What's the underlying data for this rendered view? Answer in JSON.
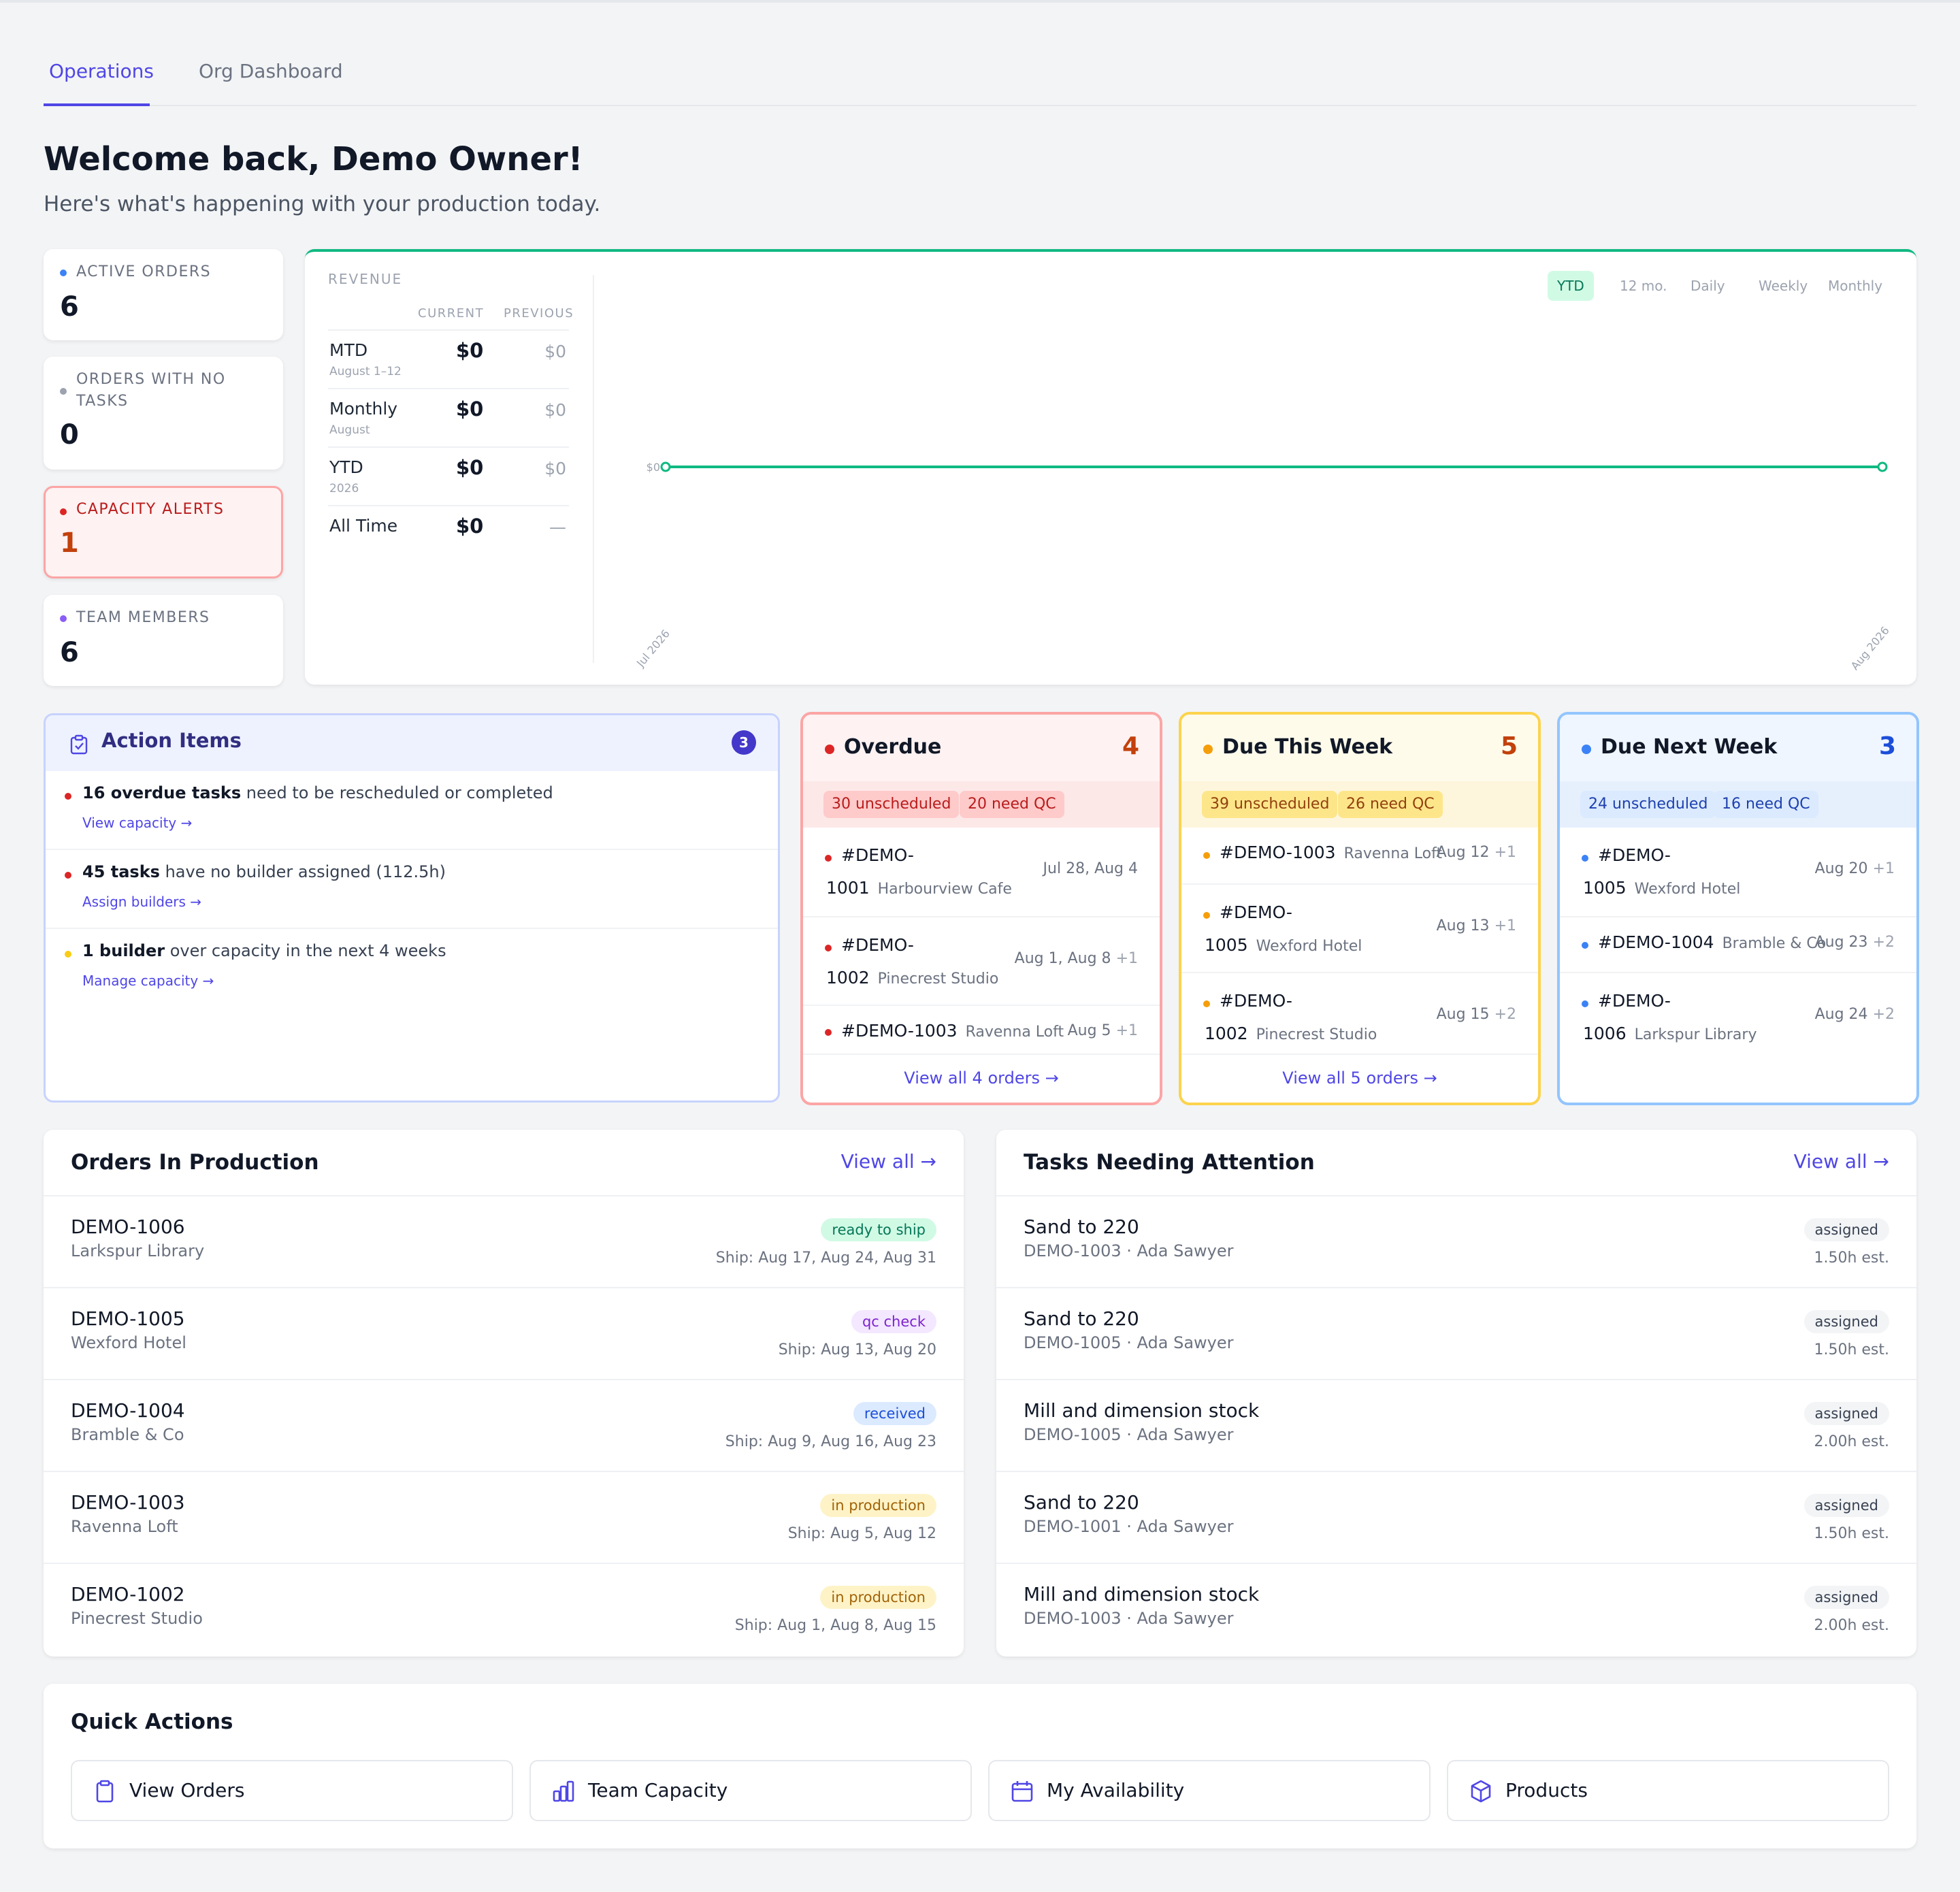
{
  "tabs": [
    {
      "label": "Operations"
    },
    {
      "label": "Org Dashboard"
    }
  ],
  "header": {
    "title": "Welcome back, Demo Owner!",
    "subtitle": "Here's what's happening with your production today."
  },
  "stats": [
    {
      "label": "ACTIVE ORDERS",
      "value": "6",
      "dot_color": "#3b82f6"
    },
    {
      "label": "ORDERS WITH NO TASKS",
      "value": "0",
      "dot_color": "#9ca3af"
    },
    {
      "label": "CAPACITY ALERTS",
      "value": "1",
      "dot_color": "#dc2626"
    },
    {
      "label": "TEAM MEMBERS",
      "value": "6",
      "dot_color": "#8b5cf6"
    }
  ],
  "revenue": {
    "title": "REVENUE",
    "col_current": "CURRENT",
    "col_previous": "PREVIOUS",
    "rows": [
      {
        "name": "MTD",
        "sub": "August 1–12",
        "current": "$0",
        "previous": "$0"
      },
      {
        "name": "Monthly",
        "sub": "August",
        "current": "$0",
        "previous": "$0"
      },
      {
        "name": "YTD",
        "sub": "2026",
        "current": "$0",
        "previous": "$0"
      },
      {
        "name": "All Time",
        "sub": "",
        "current": "$0",
        "previous": "—"
      }
    ],
    "ranges": [
      "YTD",
      "12 mo.",
      "Daily",
      "Weekly",
      "Monthly"
    ],
    "active_range": "YTD"
  },
  "chart_data": {
    "type": "line",
    "x": [
      "Jul 2026",
      "Aug 2026"
    ],
    "series": [
      {
        "values": [
          0,
          0
        ]
      }
    ],
    "ytick": "$0",
    "color": "#10b981"
  },
  "action_items": {
    "title": "Action Items",
    "count": "3",
    "items": [
      {
        "bold": "16 overdue tasks",
        "rest": " need to be rescheduled or completed",
        "link": "View capacity →",
        "dot": "#dc2626"
      },
      {
        "bold": "45 tasks",
        "rest": " have no builder assigned (112.5h)",
        "link": "Assign builders →",
        "dot": "#dc2626"
      },
      {
        "bold": "1 builder",
        "rest": " over capacity in the next 4 weeks",
        "link": "Manage capacity →",
        "dot": "#facc15"
      }
    ]
  },
  "due": [
    {
      "title": "Overdue",
      "count": "4",
      "chips": [
        "30 unscheduled",
        "20 need QC"
      ],
      "footer": "View all 4 orders →",
      "rows": [
        {
          "id_a": "#DEMO-",
          "id_b": "1001",
          "customer": "Harbourview Cafe",
          "dates": "Jul 28, Aug 4",
          "extra": ""
        },
        {
          "id_a": "#DEMO-",
          "id_b": "1002",
          "customer": "Pinecrest Studio",
          "dates": "Aug 1, Aug 8",
          "extra": "+1"
        },
        {
          "id_a": "#DEMO-1003",
          "id_b": "",
          "customer": "Ravenna Loft",
          "dates": "Aug 5",
          "extra": "+1"
        }
      ]
    },
    {
      "title": "Due This Week",
      "count": "5",
      "chips": [
        "39 unscheduled",
        "26 need QC"
      ],
      "footer": "View all 5 orders →",
      "rows": [
        {
          "id_a": "#DEMO-1003",
          "id_b": "",
          "customer": "Ravenna Loft",
          "dates": "Aug 12",
          "extra": "+1"
        },
        {
          "id_a": "#DEMO-",
          "id_b": "1005",
          "customer": "Wexford Hotel",
          "dates": "Aug 13",
          "extra": "+1"
        },
        {
          "id_a": "#DEMO-",
          "id_b": "1002",
          "customer": "Pinecrest Studio",
          "dates": "Aug 15",
          "extra": "+2"
        }
      ]
    },
    {
      "title": "Due Next Week",
      "count": "3",
      "chips": [
        "24 unscheduled",
        "16 need QC"
      ],
      "footer": "",
      "rows": [
        {
          "id_a": "#DEMO-",
          "id_b": "1005",
          "customer": "Wexford Hotel",
          "dates": "Aug 20",
          "extra": "+1"
        },
        {
          "id_a": "#DEMO-1004",
          "id_b": "",
          "customer": "Bramble & Co",
          "dates": "Aug 23",
          "extra": "+2"
        },
        {
          "id_a": "#DEMO-",
          "id_b": "1006",
          "customer": "Larkspur Library",
          "dates": "Aug 24",
          "extra": "+2"
        }
      ]
    }
  ],
  "orders": {
    "title": "Orders In Production",
    "view_all": "View all →",
    "rows": [
      {
        "id": "DEMO-1006",
        "customer": "Larkspur Library",
        "status": "ready to ship",
        "ship": "Ship: Aug 17, Aug 24, Aug 31"
      },
      {
        "id": "DEMO-1005",
        "customer": "Wexford Hotel",
        "status": "qc check",
        "ship": "Ship: Aug 13, Aug 20"
      },
      {
        "id": "DEMO-1004",
        "customer": "Bramble & Co",
        "status": "received",
        "ship": "Ship: Aug 9, Aug 16, Aug 23"
      },
      {
        "id": "DEMO-1003",
        "customer": "Ravenna Loft",
        "status": "in production",
        "ship": "Ship: Aug 5, Aug 12"
      },
      {
        "id": "DEMO-1002",
        "customer": "Pinecrest Studio",
        "status": "in production",
        "ship": "Ship: Aug 1, Aug 8, Aug 15"
      }
    ]
  },
  "tasks": {
    "title": "Tasks Needing Attention",
    "view_all": "View all →",
    "rows": [
      {
        "name": "Sand to 220",
        "sub": "DEMO-1003 · Ada Sawyer",
        "status": "assigned",
        "est": "1.50h est."
      },
      {
        "name": "Sand to 220",
        "sub": "DEMO-1005 · Ada Sawyer",
        "status": "assigned",
        "est": "1.50h est."
      },
      {
        "name": "Mill and dimension stock",
        "sub": "DEMO-1005 · Ada Sawyer",
        "status": "assigned",
        "est": "2.00h est."
      },
      {
        "name": "Sand to 220",
        "sub": "DEMO-1001 · Ada Sawyer",
        "status": "assigned",
        "est": "1.50h est."
      },
      {
        "name": "Mill and dimension stock",
        "sub": "DEMO-1003 · Ada Sawyer",
        "status": "assigned",
        "est": "2.00h est."
      }
    ]
  },
  "quick_actions": {
    "title": "Quick Actions",
    "buttons": [
      {
        "label": "View Orders",
        "icon": "clipboard-icon"
      },
      {
        "label": "Team Capacity",
        "icon": "bar-chart-icon"
      },
      {
        "label": "My Availability",
        "icon": "calendar-icon"
      },
      {
        "label": "Products",
        "icon": "cube-icon"
      }
    ]
  }
}
